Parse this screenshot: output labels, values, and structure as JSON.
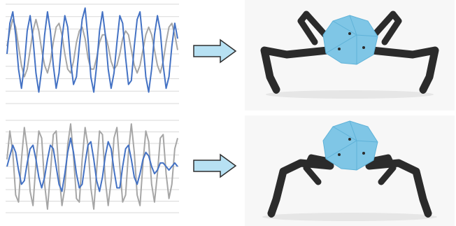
{
  "colors": {
    "background": "#ffffff",
    "gridline": "#d9d9d9",
    "series_blue": "#4472c4",
    "series_gray": "#a6a6a6",
    "arrow_fill": "#b7e1f3",
    "arrow_stroke": "#2f2f2f",
    "robot_body": "#7fc6e6",
    "robot_body_shade": "#5fb2d8",
    "robot_legs": "#2b2b2b",
    "robot_backdrop": "#f7f7f7"
  },
  "chart_data": [
    {
      "type": "line",
      "title": "",
      "xlabel": "",
      "ylabel": "",
      "grid": true,
      "ylim": [
        -1.3,
        1.3
      ],
      "x_count": 60,
      "series": [
        {
          "color": "#a6a6a6",
          "values": [
            0.2,
            0.6,
            0.9,
            0.7,
            0.2,
            -0.3,
            -0.6,
            -0.4,
            0.1,
            0.6,
            0.9,
            0.6,
            0.1,
            -0.3,
            -0.5,
            -0.2,
            0.3,
            0.7,
            0.8,
            0.5,
            0.0,
            -0.4,
            -0.5,
            -0.2,
            0.3,
            0.6,
            0.7,
            0.4,
            -0.1,
            -0.4,
            -0.4,
            -0.1,
            0.3,
            0.5,
            0.5,
            0.2,
            -0.2,
            -0.4,
            -0.3,
            0.0,
            0.4,
            0.6,
            0.5,
            0.1,
            -0.3,
            -0.5,
            -0.3,
            0.1,
            0.5,
            0.7,
            0.5,
            0.1,
            -0.3,
            -0.5,
            -0.2,
            0.3,
            0.7,
            0.8,
            0.5,
            0.1
          ]
        },
        {
          "color": "#4472c4",
          "values": [
            0.0,
            0.8,
            1.1,
            0.5,
            -0.4,
            -0.9,
            -0.3,
            0.6,
            1.0,
            0.4,
            -0.5,
            -1.0,
            -0.4,
            0.5,
            1.1,
            0.6,
            -0.3,
            -0.9,
            -0.5,
            0.4,
            1.0,
            0.7,
            -0.2,
            -0.8,
            -0.6,
            0.2,
            0.9,
            1.2,
            0.4,
            -0.6,
            -1.0,
            -0.3,
            0.6,
            1.1,
            0.5,
            -0.4,
            -0.9,
            -0.5,
            0.3,
            1.0,
            0.8,
            -0.1,
            -0.8,
            -0.7,
            0.2,
            0.9,
            1.1,
            0.3,
            -0.6,
            -1.0,
            -0.4,
            0.5,
            1.0,
            0.6,
            -0.3,
            -0.9,
            -0.6,
            0.2,
            0.8,
            0.4
          ]
        }
      ]
    },
    {
      "type": "line",
      "title": "",
      "xlabel": "",
      "ylabel": "",
      "grid": true,
      "ylim": [
        -1.3,
        1.3
      ],
      "x_count": 60,
      "series": [
        {
          "color": "#a6a6a6",
          "values": [
            0.2,
            1.0,
            0.4,
            -0.8,
            -1.0,
            0.2,
            1.1,
            0.5,
            -0.7,
            -1.1,
            0.1,
            1.0,
            0.8,
            -0.5,
            -1.2,
            -0.2,
            0.9,
            1.0,
            -0.2,
            -1.1,
            -0.6,
            0.6,
            1.2,
            0.3,
            -0.9,
            -1.0,
            0.2,
            1.1,
            0.6,
            -0.6,
            -1.2,
            -0.1,
            1.0,
            0.9,
            -0.4,
            -1.1,
            -0.4,
            0.8,
            1.1,
            0.0,
            -1.0,
            -0.8,
            0.4,
            1.2,
            0.4,
            -0.8,
            -1.1,
            0.1,
            1.0,
            0.7,
            -0.5,
            -1.0,
            -0.2,
            0.8,
            0.9,
            -0.2,
            -0.9,
            -0.5,
            0.5,
            0.8
          ]
        },
        {
          "color": "#4472c4",
          "values": [
            0.0,
            0.3,
            0.6,
            0.4,
            -0.1,
            -0.5,
            -0.4,
            0.1,
            0.5,
            0.6,
            0.2,
            -0.3,
            -0.6,
            -0.3,
            0.2,
            0.6,
            0.5,
            0.0,
            -0.5,
            -0.7,
            -0.2,
            0.4,
            0.8,
            0.4,
            -0.2,
            -0.6,
            -0.5,
            0.1,
            0.6,
            0.7,
            0.2,
            -0.4,
            -0.7,
            -0.3,
            0.3,
            0.7,
            0.5,
            -0.1,
            -0.6,
            -0.6,
            0.0,
            0.5,
            0.6,
            0.2,
            -0.3,
            -0.5,
            -0.2,
            0.2,
            0.4,
            0.3,
            0.0,
            -0.2,
            -0.1,
            0.1,
            0.1,
            0.0,
            -0.1,
            0.0,
            0.1,
            0.0
          ]
        }
      ]
    }
  ]
}
